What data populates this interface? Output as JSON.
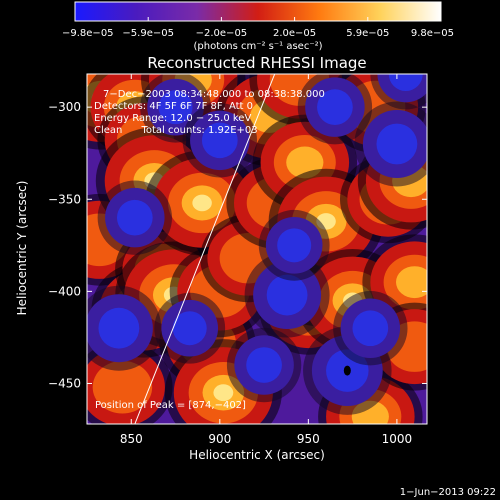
{
  "chart_data": {
    "type": "heatmap",
    "title": "Reconstructed RHESSI Image",
    "xlabel": "Heliocentric X (arcsec)",
    "ylabel": "Heliocentric Y (arcsec)",
    "xlim": [
      825,
      1017
    ],
    "ylim": [
      -472,
      -282
    ],
    "x_ticks": [
      850,
      900,
      950,
      1000
    ],
    "x_tick_labels": [
      "850",
      "900",
      "950",
      "1000"
    ],
    "y_ticks": [
      -300,
      -350,
      -400,
      -450
    ],
    "y_tick_labels": [
      "−300",
      "−350",
      "−400",
      "−450"
    ],
    "colorbar": {
      "range": [
        -9.8e-05,
        9.8e-05
      ],
      "tick_labels": [
        "−9.8e−05",
        "−5.9e−05",
        "−2.0e−05",
        "2.0e−05",
        "5.9e−05",
        "9.8e−05"
      ],
      "units": "(photons cm⁻² s⁻¹ asec⁻²)",
      "colors": [
        "#1a1aff",
        "#4a1bbf",
        "#7a2ba8",
        "#d21e14",
        "#ff7a10",
        "#ffd25a",
        "#ffffff"
      ]
    },
    "annotations": [
      "7−Dec−2003 08:34:48.000 to 08:38:38.000",
      "Detectors: 4F 5F 6F 7F 8F, Att 0",
      "Energy Range: 12.0 − 25.0 keV",
      "Clean      Total counts: 1.92E+03",
      "Position of Peak = [874,−402]"
    ],
    "limb_line": {
      "x": [
        852,
        931
      ],
      "y": [
        -472,
        -282
      ]
    },
    "peak": {
      "x": 874,
      "y": -402
    },
    "minimum_marker": {
      "x": 972,
      "y": -443
    },
    "blobs": [
      {
        "x": 833,
        "y": -295,
        "v": 0.9
      },
      {
        "x": 832,
        "y": -372,
        "v": 0.6
      },
      {
        "x": 845,
        "y": -452,
        "v": 0.6
      },
      {
        "x": 852,
        "y": -300,
        "v": 0.7
      },
      {
        "x": 857,
        "y": -410,
        "v": 0.7
      },
      {
        "x": 858,
        "y": -318,
        "v": 0.5
      },
      {
        "x": 863,
        "y": -340,
        "v": 1.0
      },
      {
        "x": 868,
        "y": -388,
        "v": 0.5
      },
      {
        "x": 874,
        "y": -402,
        "v": 1.0
      },
      {
        "x": 885,
        "y": -285,
        "v": 0.7
      },
      {
        "x": 890,
        "y": -352,
        "v": 0.95
      },
      {
        "x": 893,
        "y": -428,
        "v": 0.5
      },
      {
        "x": 900,
        "y": -400,
        "v": 0.6
      },
      {
        "x": 902,
        "y": -455,
        "v": 1.0
      },
      {
        "x": 916,
        "y": -382,
        "v": 0.5
      },
      {
        "x": 928,
        "y": -305,
        "v": 0.8
      },
      {
        "x": 932,
        "y": -352,
        "v": 0.6
      },
      {
        "x": 945,
        "y": -285,
        "v": 0.6
      },
      {
        "x": 948,
        "y": -330,
        "v": 0.7
      },
      {
        "x": 950,
        "y": -410,
        "v": 0.55
      },
      {
        "x": 955,
        "y": -395,
        "v": 0.5
      },
      {
        "x": 960,
        "y": -362,
        "v": 0.95
      },
      {
        "x": 975,
        "y": -405,
        "v": 0.9
      },
      {
        "x": 985,
        "y": -468,
        "v": 0.7
      },
      {
        "x": 988,
        "y": -300,
        "v": 0.6
      },
      {
        "x": 995,
        "y": -350,
        "v": 0.5
      },
      {
        "x": 1008,
        "y": -340,
        "v": 0.75
      },
      {
        "x": 1010,
        "y": -395,
        "v": 0.7
      },
      {
        "x": 1010,
        "y": -430,
        "v": 0.5
      },
      {
        "x": 843,
        "y": -420,
        "v": -0.9
      },
      {
        "x": 852,
        "y": -360,
        "v": -0.6
      },
      {
        "x": 875,
        "y": -300,
        "v": -0.5
      },
      {
        "x": 883,
        "y": -420,
        "v": -0.5
      },
      {
        "x": 900,
        "y": -318,
        "v": -0.6
      },
      {
        "x": 925,
        "y": -440,
        "v": -0.6
      },
      {
        "x": 938,
        "y": -402,
        "v": -0.9
      },
      {
        "x": 942,
        "y": -375,
        "v": -0.5
      },
      {
        "x": 965,
        "y": -300,
        "v": -0.6
      },
      {
        "x": 972,
        "y": -443,
        "v": -1.0
      },
      {
        "x": 985,
        "y": -420,
        "v": -0.6
      },
      {
        "x": 1000,
        "y": -320,
        "v": -0.9
      },
      {
        "x": 1005,
        "y": -282,
        "v": -0.5
      }
    ]
  },
  "footer": {
    "timestamp": "1−Jun−2013 09:22"
  }
}
